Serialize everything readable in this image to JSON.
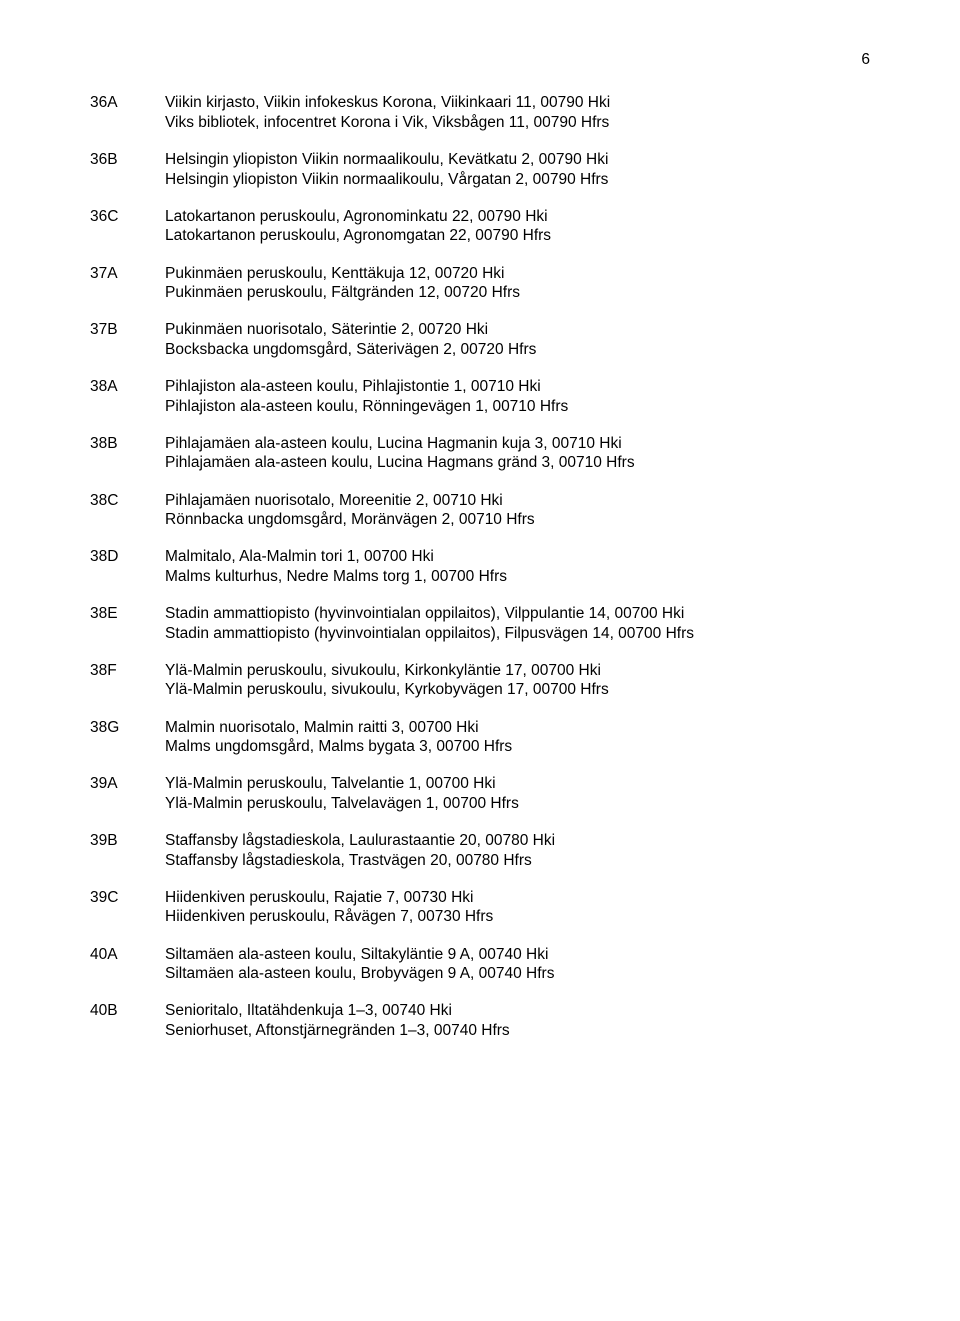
{
  "page_number": "6",
  "entries": [
    {
      "code": "36A",
      "lines": [
        "Viikin kirjasto, Viikin infokeskus Korona, Viikinkaari 11, 00790 Hki",
        "Viks bibliotek, infocentret Korona i Vik, Viksbågen 11, 00790 Hfrs"
      ]
    },
    {
      "code": "36B",
      "lines": [
        "Helsingin yliopiston Viikin normaalikoulu, Kevätkatu 2, 00790 Hki",
        "Helsingin yliopiston Viikin normaalikoulu, Vårgatan 2, 00790 Hfrs"
      ]
    },
    {
      "code": "36C",
      "lines": [
        "Latokartanon peruskoulu, Agronominkatu 22, 00790 Hki",
        "Latokartanon peruskoulu, Agronomgatan 22, 00790 Hfrs"
      ]
    },
    {
      "code": "37A",
      "lines": [
        "Pukinmäen peruskoulu, Kenttäkuja 12, 00720 Hki",
        "Pukinmäen peruskoulu, Fältgränden 12, 00720 Hfrs"
      ]
    },
    {
      "code": "37B",
      "lines": [
        "Pukinmäen nuorisotalo, Säterintie 2, 00720 Hki",
        "Bocksbacka ungdomsgård, Säterivägen 2, 00720 Hfrs"
      ]
    },
    {
      "code": "38A",
      "lines": [
        "Pihlajiston ala-asteen koulu, Pihlajistontie 1, 00710 Hki",
        "Pihlajiston ala-asteen koulu, Rönningevägen 1, 00710 Hfrs"
      ]
    },
    {
      "code": "38B",
      "lines": [
        "Pihlajamäen ala-asteen koulu, Lucina Hagmanin kuja 3, 00710 Hki",
        "Pihlajamäen ala-asteen koulu, Lucina Hagmans gränd 3, 00710 Hfrs"
      ]
    },
    {
      "code": "38C",
      "lines": [
        "Pihlajamäen nuorisotalo, Moreenitie 2, 00710 Hki",
        "Rönnbacka ungdomsgård, Moränvägen 2, 00710 Hfrs"
      ]
    },
    {
      "code": "38D",
      "lines": [
        "Malmitalo, Ala-Malmin tori 1, 00700 Hki",
        "Malms kulturhus, Nedre Malms torg 1, 00700 Hfrs"
      ]
    },
    {
      "code": "38E",
      "lines": [
        "Stadin ammattiopisto (hyvinvointialan oppilaitos), Vilppulantie 14, 00700 Hki",
        "Stadin ammattiopisto (hyvinvointialan oppilaitos), Filpusvägen 14, 00700 Hfrs"
      ]
    },
    {
      "code": "38F",
      "lines": [
        "Ylä-Malmin peruskoulu, sivukoulu, Kirkonkyläntie 17, 00700 Hki",
        "Ylä-Malmin peruskoulu, sivukoulu, Kyrkobyvägen 17, 00700 Hfrs"
      ]
    },
    {
      "code": "38G",
      "lines": [
        "Malmin nuorisotalo, Malmin raitti 3, 00700 Hki",
        "Malms ungdomsgård, Malms bygata 3, 00700 Hfrs"
      ]
    },
    {
      "code": "39A",
      "lines": [
        "Ylä-Malmin peruskoulu, Talvelantie 1, 00700 Hki",
        "Ylä-Malmin peruskoulu, Talvelavägen 1, 00700 Hfrs"
      ]
    },
    {
      "code": "39B",
      "lines": [
        "Staffansby lågstadieskola, Laulurastaantie 20, 00780 Hki",
        "Staffansby lågstadieskola, Trastvägen 20, 00780 Hfrs"
      ]
    },
    {
      "code": "39C",
      "lines": [
        "Hiidenkiven peruskoulu, Rajatie 7, 00730 Hki",
        "Hiidenkiven peruskoulu, Råvägen 7, 00730 Hfrs"
      ]
    },
    {
      "code": "40A",
      "lines": [
        "Siltamäen ala-asteen koulu, Siltakyläntie 9 A, 00740 Hki",
        "Siltamäen ala-asteen koulu, Brobyvägen 9 A, 00740 Hfrs"
      ]
    },
    {
      "code": "40B",
      "lines": [
        "Senioritalo, Iltatähdenkuja 1–3, 00740 Hki",
        "Seniorhuset, Aftonstjärnegränden 1–3, 00740 Hfrs"
      ]
    }
  ]
}
